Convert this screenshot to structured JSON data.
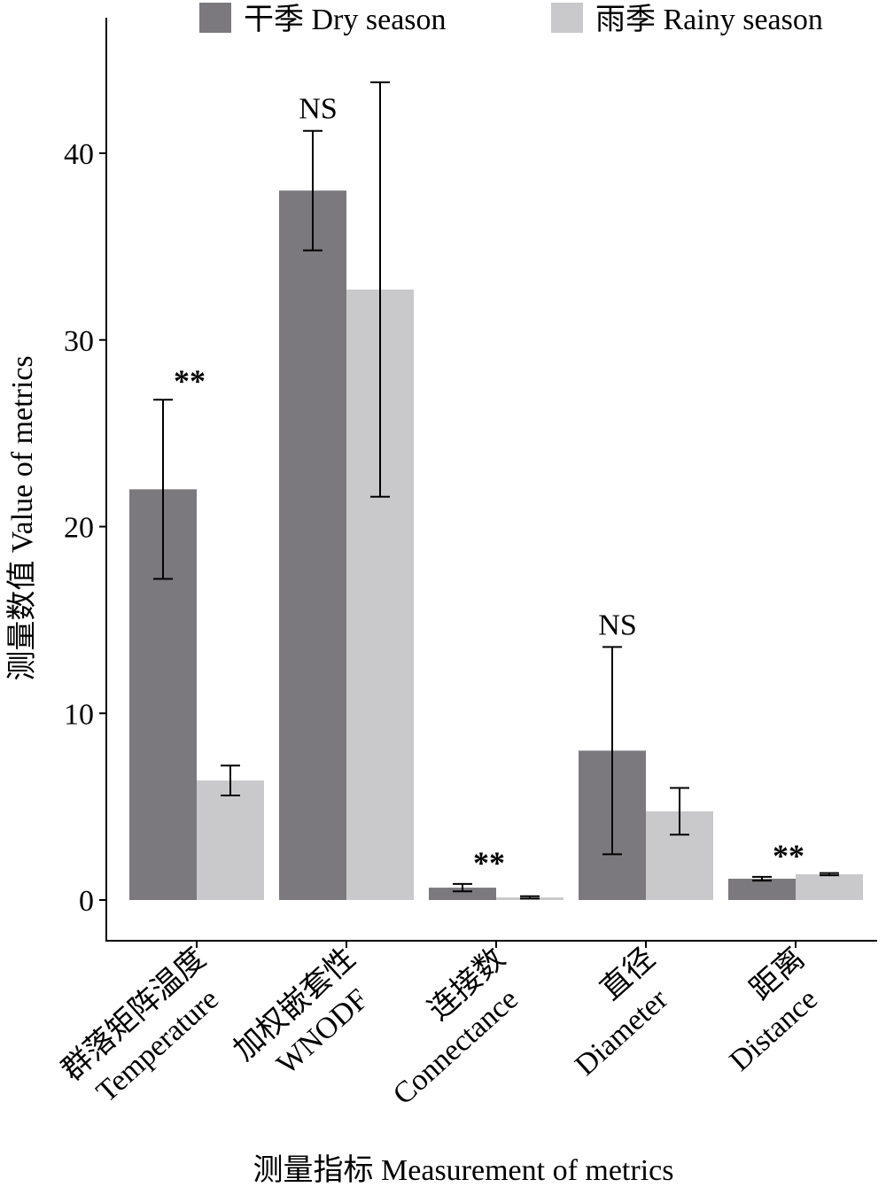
{
  "chart_data": {
    "type": "bar",
    "title": "",
    "xlabel": "测量指标 Measurement of metrics",
    "ylabel": "测量数值 Value of metrics",
    "ylim": [
      0,
      45
    ],
    "yticks": [
      0,
      10,
      20,
      30,
      40
    ],
    "grid": false,
    "legend_position": "top",
    "categories": [
      {
        "cn": "群落矩阵温度",
        "en": "Temperature"
      },
      {
        "cn": "加权嵌套性",
        "en": "WNODF"
      },
      {
        "cn": "连接数",
        "en": "Connectance"
      },
      {
        "cn": "直径",
        "en": "Diameter"
      },
      {
        "cn": "距离",
        "en": "Distance"
      }
    ],
    "series": [
      {
        "name": "干季 Dry season",
        "color": "#7b797e",
        "values": [
          22.0,
          38.0,
          0.66,
          8.0,
          1.14
        ],
        "errors": [
          4.8,
          3.2,
          0.2,
          5.55,
          0.1
        ]
      },
      {
        "name": "雨季 Rainy season",
        "color": "#c9c9cb",
        "values": [
          6.4,
          32.7,
          0.14,
          4.75,
          1.38
        ],
        "errors": [
          0.8,
          11.1,
          0.06,
          1.25,
          0.06
        ]
      }
    ],
    "annotations": [
      "**",
      "NS",
      "**",
      "NS",
      "**"
    ]
  }
}
